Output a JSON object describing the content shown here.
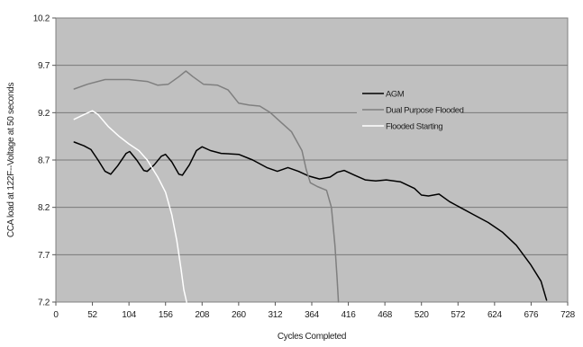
{
  "chart_data": {
    "type": "line",
    "title": "",
    "xlabel": "Cycles Completed",
    "ylabel": "CCA load at 122F--Voltage at 50 seconds",
    "xlim": [
      0,
      728
    ],
    "ylim": [
      7.2,
      10.2
    ],
    "x_ticks": [
      "0",
      "52",
      "104",
      "156",
      "208",
      "260",
      "312",
      "364",
      "416",
      "468",
      "520",
      "572",
      "624",
      "676",
      "728"
    ],
    "y_ticks": [
      "7.2",
      "7.7",
      "8.2",
      "8.7",
      "9.2",
      "9.7",
      "10.2"
    ],
    "plot_background": "#c0c0c0",
    "gridlines": "horizontal",
    "legend_position": "right",
    "series": [
      {
        "name": "AGM",
        "color": "#000000",
        "points": [
          [
            26,
            8.89
          ],
          [
            40,
            8.85
          ],
          [
            50,
            8.81
          ],
          [
            60,
            8.7
          ],
          [
            70,
            8.58
          ],
          [
            78,
            8.55
          ],
          [
            88,
            8.64
          ],
          [
            100,
            8.77
          ],
          [
            105,
            8.79
          ],
          [
            115,
            8.7
          ],
          [
            125,
            8.59
          ],
          [
            130,
            8.58
          ],
          [
            140,
            8.65
          ],
          [
            150,
            8.74
          ],
          [
            156,
            8.76
          ],
          [
            165,
            8.68
          ],
          [
            175,
            8.55
          ],
          [
            180,
            8.54
          ],
          [
            190,
            8.65
          ],
          [
            200,
            8.8
          ],
          [
            208,
            8.84
          ],
          [
            220,
            8.8
          ],
          [
            235,
            8.77
          ],
          [
            260,
            8.76
          ],
          [
            280,
            8.7
          ],
          [
            300,
            8.62
          ],
          [
            315,
            8.58
          ],
          [
            330,
            8.62
          ],
          [
            345,
            8.58
          ],
          [
            360,
            8.53
          ],
          [
            375,
            8.5
          ],
          [
            390,
            8.52
          ],
          [
            400,
            8.57
          ],
          [
            410,
            8.59
          ],
          [
            425,
            8.54
          ],
          [
            440,
            8.49
          ],
          [
            455,
            8.48
          ],
          [
            470,
            8.49
          ],
          [
            490,
            8.47
          ],
          [
            510,
            8.4
          ],
          [
            520,
            8.33
          ],
          [
            530,
            8.32
          ],
          [
            545,
            8.34
          ],
          [
            560,
            8.26
          ],
          [
            575,
            8.2
          ],
          [
            595,
            8.12
          ],
          [
            615,
            8.04
          ],
          [
            635,
            7.94
          ],
          [
            655,
            7.8
          ],
          [
            675,
            7.6
          ],
          [
            690,
            7.42
          ],
          [
            698,
            7.22
          ]
        ]
      },
      {
        "name": "Dual Purpose Flooded",
        "color": "#7f7f7f",
        "points": [
          [
            26,
            9.45
          ],
          [
            45,
            9.5
          ],
          [
            70,
            9.55
          ],
          [
            104,
            9.55
          ],
          [
            130,
            9.53
          ],
          [
            145,
            9.49
          ],
          [
            160,
            9.5
          ],
          [
            175,
            9.58
          ],
          [
            185,
            9.64
          ],
          [
            195,
            9.58
          ],
          [
            210,
            9.5
          ],
          [
            230,
            9.49
          ],
          [
            245,
            9.44
          ],
          [
            260,
            9.3
          ],
          [
            275,
            9.28
          ],
          [
            290,
            9.27
          ],
          [
            305,
            9.2
          ],
          [
            320,
            9.1
          ],
          [
            335,
            9.0
          ],
          [
            350,
            8.8
          ],
          [
            356,
            8.6
          ],
          [
            362,
            8.46
          ],
          [
            372,
            8.42
          ],
          [
            385,
            8.38
          ],
          [
            392,
            8.2
          ],
          [
            397,
            7.8
          ],
          [
            400,
            7.45
          ],
          [
            402,
            7.2
          ]
        ]
      },
      {
        "name": "Flooded Starting",
        "color": "#ffffff",
        "points": [
          [
            26,
            9.13
          ],
          [
            40,
            9.18
          ],
          [
            52,
            9.22
          ],
          [
            60,
            9.18
          ],
          [
            75,
            9.05
          ],
          [
            90,
            8.95
          ],
          [
            104,
            8.87
          ],
          [
            118,
            8.8
          ],
          [
            130,
            8.7
          ],
          [
            145,
            8.52
          ],
          [
            156,
            8.36
          ],
          [
            165,
            8.12
          ],
          [
            172,
            7.85
          ],
          [
            178,
            7.55
          ],
          [
            182,
            7.33
          ],
          [
            186,
            7.2
          ]
        ]
      }
    ]
  }
}
